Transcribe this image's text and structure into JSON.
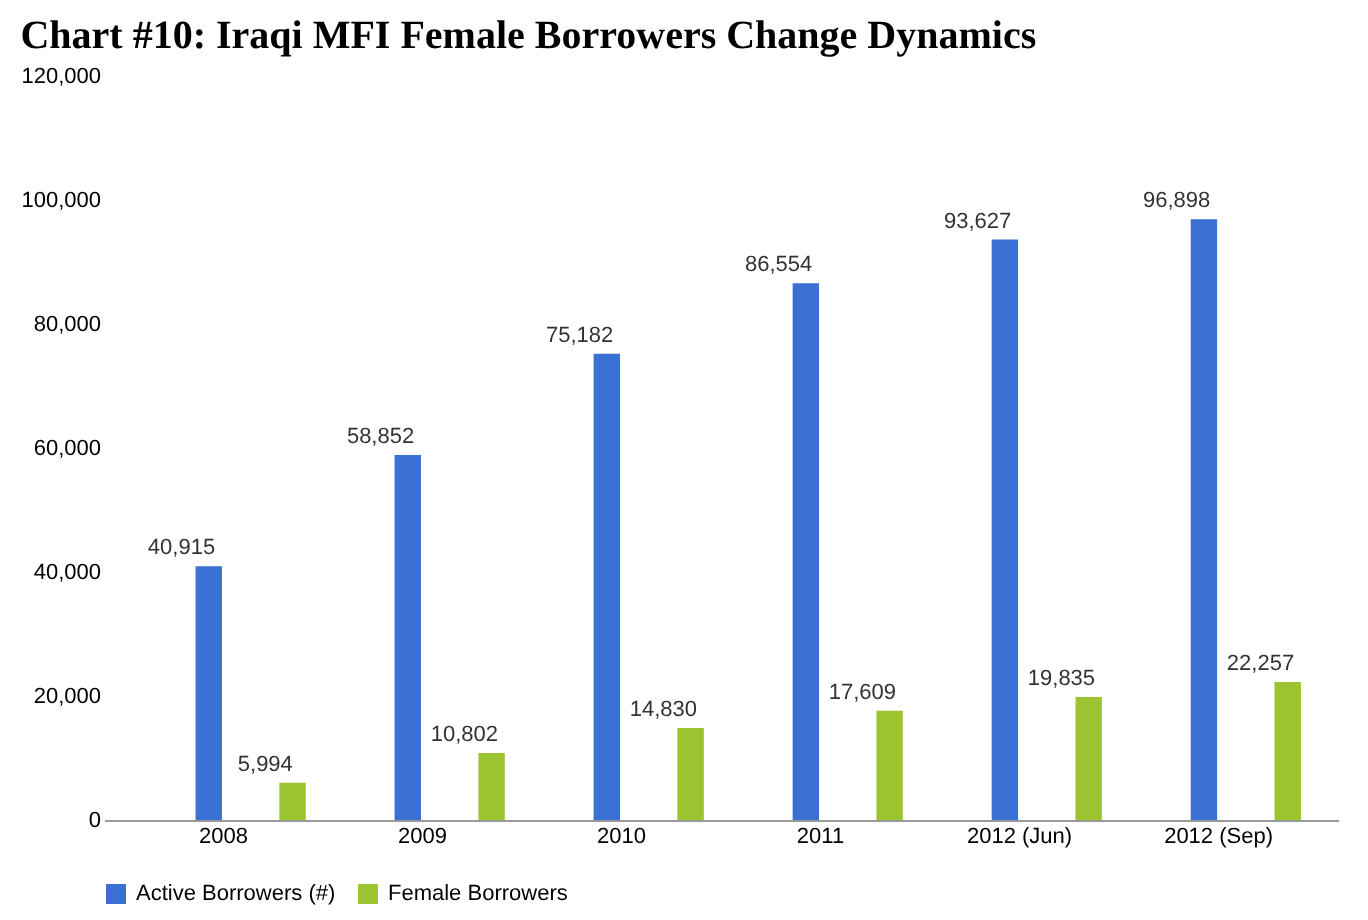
{
  "chart_data": {
    "type": "bar",
    "title": "Chart #10: Iraqi MFI Female Borrowers Change Dynamics",
    "categories": [
      "2008",
      "2009",
      "2010",
      "2011",
      "2012 (Jun)",
      "2012 (Sep)"
    ],
    "series": [
      {
        "name": "Active Borrowers (#)",
        "color": "#3a6fd4",
        "values": [
          40915,
          58852,
          75182,
          86554,
          93627,
          96898
        ],
        "value_labels": [
          "40,915",
          "58,852",
          "75,182",
          "86,554",
          "93,627",
          "96,898"
        ]
      },
      {
        "name": "Female Borrowers",
        "color": "#9cc431",
        "values": [
          5994,
          10802,
          14830,
          17609,
          19835,
          22257
        ],
        "value_labels": [
          "5,994",
          "10,802",
          "14,830",
          "17,609",
          "19,835",
          "22,257"
        ]
      }
    ],
    "ylim": [
      0,
      120000
    ],
    "yticks": [
      0,
      {
        "value": 20000,
        "label": "20,000"
      },
      {
        "value": 40000,
        "label": "40,000"
      },
      {
        "value": 60000,
        "label": "60,000"
      },
      {
        "value": 80000,
        "label": "80,000"
      },
      {
        "value": 100000,
        "label": "100,000"
      },
      {
        "value": 120000,
        "label": "120,000"
      }
    ],
    "grid": false,
    "legend": "bottom"
  }
}
